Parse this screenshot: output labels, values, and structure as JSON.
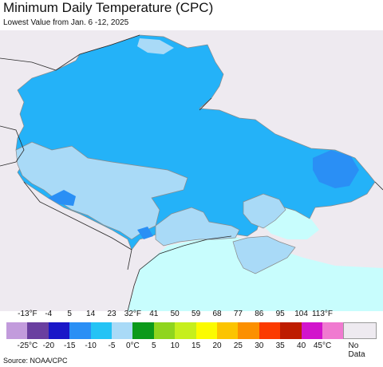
{
  "title": "Minimum Daily Temperature (CPC)",
  "subtitle": "Lowest Value from Jan. 6 -12, 2025",
  "source": "Source: NOAA/CPC",
  "legend": {
    "fahrenheit": [
      "-13°F",
      "-4",
      "5",
      "14",
      "23",
      "32°F",
      "41",
      "50",
      "59",
      "68",
      "77",
      "86",
      "95",
      "104",
      "113°F"
    ],
    "celsius": [
      "-25°C",
      "-20",
      "-15",
      "-10",
      "-5",
      "0°C",
      "5",
      "10",
      "15",
      "20",
      "25",
      "30",
      "35",
      "40",
      "45°C"
    ],
    "colors": [
      "#c29bdc",
      "#6a3fa0",
      "#1a17c8",
      "#2a8ff5",
      "#24c3f5",
      "#a9daf7",
      "#0c9a1b",
      "#8fd51e",
      "#c6ef1d",
      "#fcfb00",
      "#fcc400",
      "#fc9000",
      "#fc3a00",
      "#be1c00",
      "#d214cc",
      "#f07ad0"
    ],
    "no_data_label": "No Data",
    "no_data_color": "#eeeaf0"
  },
  "map": {
    "colors": {
      "background": "#eeeaf0",
      "sea": "#c8fdfd",
      "range_minus10_minus5": "#24b2f8",
      "range_minus15_minus10": "#2a8ff5",
      "range_minus5_0": "#a9daf7",
      "borders": "#8a8a8a",
      "country_borders": "#2a2a2a"
    }
  }
}
